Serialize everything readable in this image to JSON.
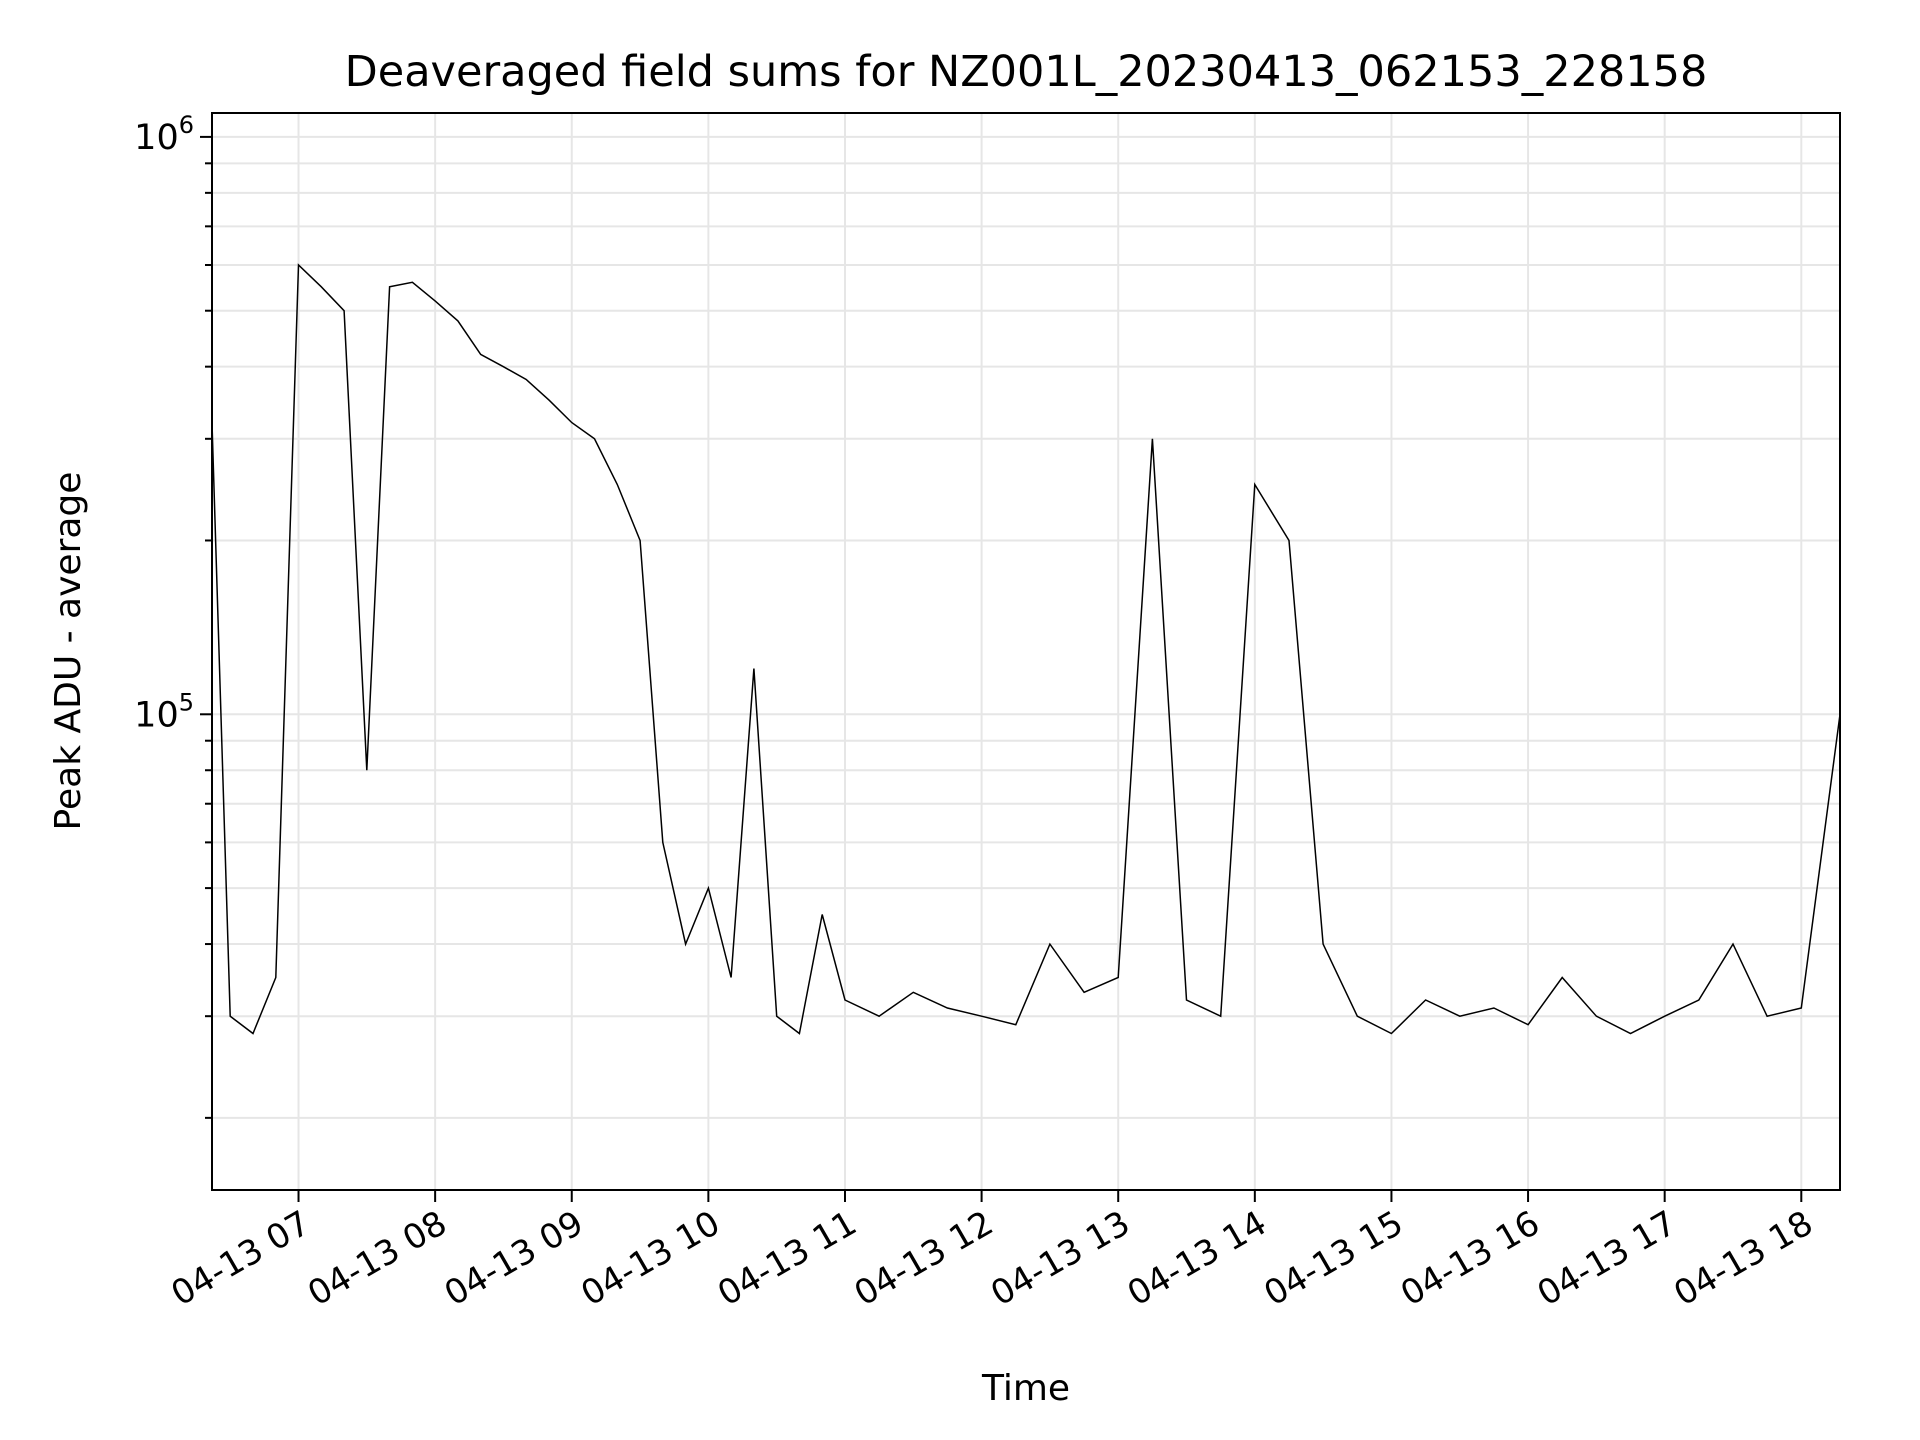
{
  "chart_data": {
    "type": "line",
    "title": "Deaveraged field sums for NZ001L_20230413_062153_228158",
    "xlabel": "Time",
    "ylabel": "Peak ADU - average",
    "yscale": "log",
    "ylim": [
      15000,
      1100000
    ],
    "xlim": [
      "2023-04-13 06:22",
      "2023-04-13 18:17"
    ],
    "grid": true,
    "line_color": "#000000",
    "grid_color": "#e6e6e6",
    "x_ticks": [
      {
        "value": "2023-04-13 07:00",
        "label": "04-13 07"
      },
      {
        "value": "2023-04-13 08:00",
        "label": "04-13 08"
      },
      {
        "value": "2023-04-13 09:00",
        "label": "04-13 09"
      },
      {
        "value": "2023-04-13 10:00",
        "label": "04-13 10"
      },
      {
        "value": "2023-04-13 11:00",
        "label": "04-13 11"
      },
      {
        "value": "2023-04-13 12:00",
        "label": "04-13 12"
      },
      {
        "value": "2023-04-13 13:00",
        "label": "04-13 13"
      },
      {
        "value": "2023-04-13 14:00",
        "label": "04-13 14"
      },
      {
        "value": "2023-04-13 15:00",
        "label": "04-13 15"
      },
      {
        "value": "2023-04-13 16:00",
        "label": "04-13 16"
      },
      {
        "value": "2023-04-13 17:00",
        "label": "04-13 17"
      },
      {
        "value": "2023-04-13 18:00",
        "label": "04-13 18"
      }
    ],
    "y_ticks": [
      {
        "value": 100000,
        "base": "10",
        "exp": "5"
      },
      {
        "value": 1000000,
        "base": "10",
        "exp": "6"
      }
    ],
    "series": [
      {
        "x": [
          "2023-04-13 06:22",
          "2023-04-13 06:30",
          "2023-04-13 06:40",
          "2023-04-13 06:50",
          "2023-04-13 07:00",
          "2023-04-13 07:10",
          "2023-04-13 07:20",
          "2023-04-13 07:30",
          "2023-04-13 07:40",
          "2023-04-13 07:50",
          "2023-04-13 08:00",
          "2023-04-13 08:10",
          "2023-04-13 08:20",
          "2023-04-13 08:30",
          "2023-04-13 08:40",
          "2023-04-13 08:50",
          "2023-04-13 09:00",
          "2023-04-13 09:10",
          "2023-04-13 09:20",
          "2023-04-13 09:30",
          "2023-04-13 09:40",
          "2023-04-13 09:50",
          "2023-04-13 10:00",
          "2023-04-13 10:10",
          "2023-04-13 10:20",
          "2023-04-13 10:30",
          "2023-04-13 10:40",
          "2023-04-13 10:50",
          "2023-04-13 11:00",
          "2023-04-13 11:15",
          "2023-04-13 11:30",
          "2023-04-13 11:45",
          "2023-04-13 12:00",
          "2023-04-13 12:15",
          "2023-04-13 12:30",
          "2023-04-13 12:45",
          "2023-04-13 13:00",
          "2023-04-13 13:15",
          "2023-04-13 13:30",
          "2023-04-13 13:45",
          "2023-04-13 14:00",
          "2023-04-13 14:15",
          "2023-04-13 14:30",
          "2023-04-13 14:45",
          "2023-04-13 15:00",
          "2023-04-13 15:15",
          "2023-04-13 15:30",
          "2023-04-13 15:45",
          "2023-04-13 16:00",
          "2023-04-13 16:15",
          "2023-04-13 16:30",
          "2023-04-13 16:45",
          "2023-04-13 17:00",
          "2023-04-13 17:15",
          "2023-04-13 17:30",
          "2023-04-13 17:45",
          "2023-04-13 18:00",
          "2023-04-13 18:17"
        ],
        "values": [
          320000,
          30000,
          28000,
          35000,
          600000,
          550000,
          500000,
          80000,
          550000,
          560000,
          520000,
          480000,
          420000,
          400000,
          380000,
          350000,
          320000,
          300000,
          250000,
          200000,
          60000,
          40000,
          50000,
          35000,
          120000,
          30000,
          28000,
          45000,
          32000,
          30000,
          33000,
          31000,
          30000,
          29000,
          40000,
          33000,
          35000,
          300000,
          32000,
          30000,
          250000,
          200000,
          40000,
          30000,
          28000,
          32000,
          30000,
          31000,
          29000,
          35000,
          30000,
          28000,
          30000,
          32000,
          40000,
          30000,
          31000,
          100000
        ]
      }
    ]
  }
}
